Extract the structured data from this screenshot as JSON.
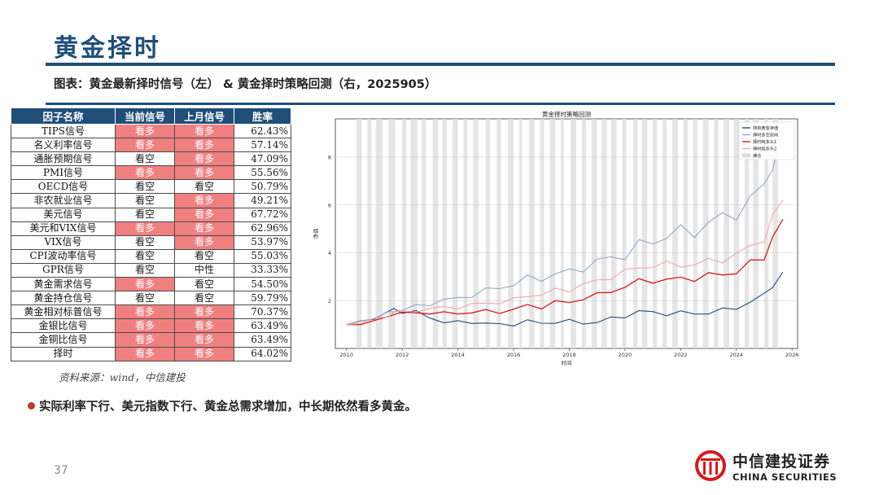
{
  "slide": {
    "title": "黄金择时",
    "subtitle": "图表：黄金最新择时信号（左） & 黄金择时策略回测（右，2025905）",
    "source": "资料来源：wind，中信建投",
    "bullet": "实际利率下行、美元指数下行、黄金总需求增加，中长期依然看多黄金。",
    "page_number": "37",
    "logo_cn": "中信建投证券",
    "logo_en": "CHINA SECURITIES",
    "colors": {
      "primary": "#1f4e79",
      "bullish_cell": "#f08080",
      "bullet": "#c0392b"
    }
  },
  "signal_table": {
    "headers": [
      "因子名称",
      "当前信号",
      "上月信号",
      "胜率"
    ],
    "rows": [
      {
        "name": "TIPS信号",
        "current": "看多",
        "previous": "看多",
        "win_rate": "62.43%"
      },
      {
        "name": "名义利率信号",
        "current": "看多",
        "previous": "看多",
        "win_rate": "57.14%"
      },
      {
        "name": "通胀预期信号",
        "current": "看空",
        "previous": "看多",
        "win_rate": "47.09%"
      },
      {
        "name": "PMI信号",
        "current": "看多",
        "previous": "看多",
        "win_rate": "55.56%"
      },
      {
        "name": "OECD信号",
        "current": "看空",
        "previous": "看空",
        "win_rate": "50.79%"
      },
      {
        "name": "非农就业信号",
        "current": "看空",
        "previous": "看多",
        "win_rate": "49.21%"
      },
      {
        "name": "美元信号",
        "current": "看空",
        "previous": "看多",
        "win_rate": "67.72%"
      },
      {
        "name": "美元和VIX信号",
        "current": "看多",
        "previous": "看多",
        "win_rate": "62.96%"
      },
      {
        "name": "VIX信号",
        "current": "看空",
        "previous": "看多",
        "win_rate": "53.97%"
      },
      {
        "name": "CPI波动率信号",
        "current": "看空",
        "previous": "看空",
        "win_rate": "55.03%"
      },
      {
        "name": "GPR信号",
        "current": "看空",
        "previous": "中性",
        "win_rate": "33.33%"
      },
      {
        "name": "黄金需求信号",
        "current": "看多",
        "previous": "看空",
        "win_rate": "54.50%"
      },
      {
        "name": "黄金持仓信号",
        "current": "看空",
        "previous": "看空",
        "win_rate": "59.79%"
      },
      {
        "name": "黄金相对标普信号",
        "current": "看多",
        "previous": "看多",
        "win_rate": "70.37%"
      },
      {
        "name": "金银比信号",
        "current": "看多",
        "previous": "看多",
        "win_rate": "63.49%"
      },
      {
        "name": "金铜比信号",
        "current": "看多",
        "previous": "看多",
        "win_rate": "63.49%"
      },
      {
        "name": "择时",
        "current": "看多",
        "previous": "看多",
        "win_rate": "64.02%"
      }
    ]
  },
  "chart_data": {
    "type": "line",
    "title": "黄金择时策略回测",
    "xlabel": "时间",
    "ylabel": "净值",
    "x_ticks": [
      "2010",
      "2012",
      "2014",
      "2016",
      "2018",
      "2020",
      "2022",
      "2024",
      "2026"
    ],
    "y_ticks": [
      2,
      4,
      6,
      8
    ],
    "xlim": [
      2009.6,
      2026.2
    ],
    "ylim": [
      0.0,
      9.6
    ],
    "grid": true,
    "legend_position": "top-right",
    "x": [
      2010.0,
      2010.5,
      2011.0,
      2011.5,
      2011.7,
      2012.0,
      2012.5,
      2013.0,
      2013.5,
      2014.0,
      2014.5,
      2015.0,
      2015.5,
      2016.0,
      2016.5,
      2017.0,
      2017.5,
      2018.0,
      2018.5,
      2019.0,
      2019.5,
      2020.0,
      2020.5,
      2021.0,
      2021.5,
      2022.0,
      2022.5,
      2023.0,
      2023.5,
      2024.0,
      2024.5,
      2025.0,
      2025.3,
      2025.67
    ],
    "series": [
      {
        "name": "持有黄金净值",
        "color": "#1f4e79",
        "values": [
          1.0,
          1.1,
          1.3,
          1.5,
          1.65,
          1.55,
          1.5,
          1.3,
          1.1,
          1.1,
          1.1,
          1.05,
          1.0,
          1.0,
          1.15,
          1.05,
          1.1,
          1.15,
          1.05,
          1.1,
          1.25,
          1.35,
          1.55,
          1.5,
          1.45,
          1.5,
          1.45,
          1.5,
          1.6,
          1.7,
          1.95,
          2.2,
          2.7,
          3.2
        ]
      },
      {
        "name": "择时多空双向",
        "color": "#8fa9c4",
        "values": [
          1.0,
          1.15,
          1.3,
          1.45,
          1.6,
          1.6,
          1.75,
          1.9,
          2.0,
          2.1,
          2.25,
          2.4,
          2.55,
          2.7,
          2.9,
          2.95,
          3.1,
          3.2,
          3.4,
          3.6,
          3.8,
          3.9,
          4.3,
          4.5,
          4.7,
          4.9,
          4.9,
          5.2,
          5.5,
          5.7,
          6.1,
          6.9,
          7.8,
          9.1
        ]
      },
      {
        "name": "择时纯多头1",
        "color": "#d7191c",
        "values": [
          1.0,
          1.05,
          1.15,
          1.3,
          1.5,
          1.45,
          1.5,
          1.5,
          1.45,
          1.5,
          1.5,
          1.55,
          1.55,
          1.6,
          1.8,
          1.75,
          1.9,
          1.95,
          2.1,
          2.2,
          2.45,
          2.55,
          2.8,
          2.9,
          2.8,
          2.95,
          2.95,
          3.0,
          3.15,
          3.2,
          3.5,
          3.9,
          4.6,
          5.4
        ]
      },
      {
        "name": "择时纯多头2",
        "color": "#f4a6a6",
        "values": [
          1.0,
          1.1,
          1.2,
          1.35,
          1.55,
          1.5,
          1.6,
          1.65,
          1.7,
          1.75,
          1.8,
          1.9,
          1.95,
          2.0,
          2.25,
          2.25,
          2.4,
          2.5,
          2.65,
          2.8,
          3.05,
          3.15,
          3.4,
          3.5,
          3.45,
          3.55,
          3.5,
          3.6,
          3.8,
          3.85,
          4.25,
          4.7,
          5.3,
          6.2
        ]
      }
    ],
    "shaded_legend": "满仓",
    "shaded_periods": [
      [
        2010.35,
        2010.55
      ],
      [
        2010.75,
        2010.9
      ],
      [
        2011.05,
        2011.3
      ],
      [
        2011.5,
        2011.75
      ],
      [
        2012.0,
        2012.15
      ],
      [
        2012.3,
        2012.55
      ],
      [
        2012.7,
        2012.85
      ],
      [
        2013.1,
        2013.3
      ],
      [
        2013.45,
        2013.6
      ],
      [
        2013.8,
        2014.0
      ],
      [
        2014.2,
        2014.35
      ],
      [
        2014.55,
        2014.75
      ],
      [
        2015.0,
        2015.15
      ],
      [
        2015.4,
        2015.55
      ],
      [
        2015.8,
        2016.0
      ],
      [
        2016.2,
        2016.3
      ],
      [
        2016.55,
        2016.75
      ],
      [
        2016.95,
        2017.1
      ],
      [
        2017.3,
        2017.5
      ],
      [
        2017.7,
        2017.8
      ],
      [
        2018.05,
        2018.25
      ],
      [
        2018.45,
        2018.6
      ],
      [
        2018.8,
        2019.0
      ],
      [
        2019.15,
        2019.35
      ],
      [
        2019.5,
        2019.7
      ],
      [
        2019.9,
        2020.05
      ],
      [
        2020.3,
        2020.45
      ],
      [
        2020.6,
        2020.8
      ],
      [
        2021.0,
        2021.15
      ],
      [
        2021.35,
        2021.5
      ],
      [
        2021.7,
        2021.9
      ],
      [
        2022.1,
        2022.25
      ],
      [
        2022.45,
        2022.6
      ],
      [
        2022.8,
        2023.0
      ],
      [
        2023.2,
        2023.35
      ],
      [
        2023.55,
        2023.75
      ],
      [
        2023.9,
        2024.1
      ],
      [
        2024.3,
        2024.45
      ],
      [
        2024.6,
        2024.8
      ],
      [
        2025.0,
        2025.15
      ],
      [
        2025.3,
        2025.5
      ]
    ]
  }
}
